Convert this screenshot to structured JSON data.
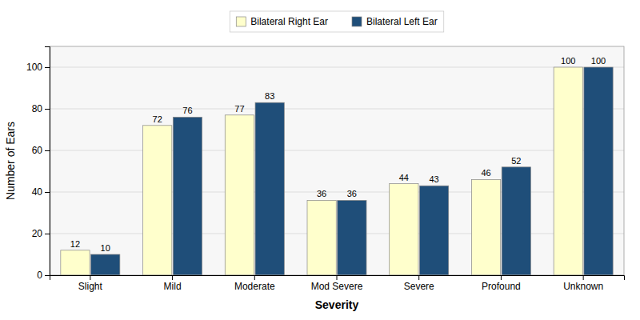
{
  "chart_data": {
    "type": "bar",
    "categories": [
      "Slight",
      "Mild",
      "Moderate",
      "Mod Severe",
      "Severe",
      "Profound",
      "Unknown"
    ],
    "series": [
      {
        "name": "Bilateral Right Ear",
        "color": "#FFFFCC",
        "values": [
          12,
          72,
          77,
          36,
          44,
          46,
          100
        ]
      },
      {
        "name": "Bilateral Left Ear",
        "color": "#1F4E79",
        "values": [
          10,
          76,
          83,
          36,
          43,
          52,
          100
        ]
      }
    ],
    "xlabel": "Severity",
    "ylabel": "Number of Ears",
    "ylim": [
      0,
      110
    ],
    "yticks": [
      0,
      20,
      40,
      60,
      80,
      100
    ],
    "grid": true,
    "legend": "top",
    "data_labels": true
  }
}
